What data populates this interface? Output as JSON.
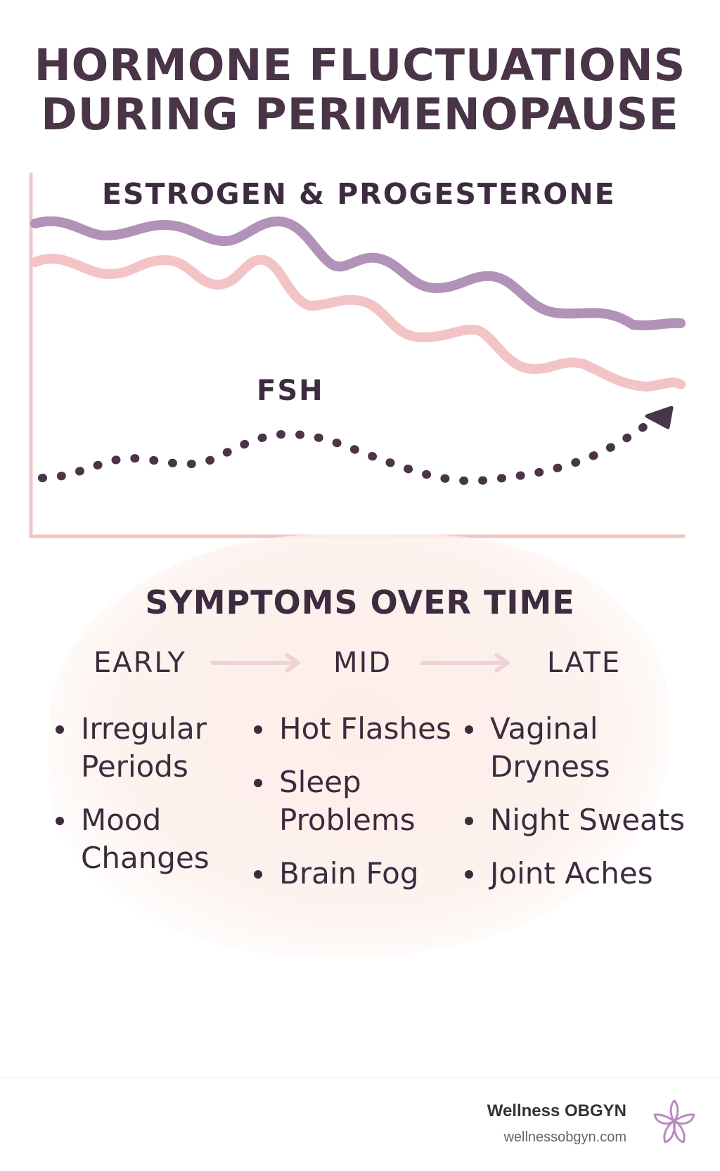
{
  "title": {
    "line1": "HORMONE FLUCTUATIONS",
    "line2": "DURING PERIMENOPAUSE"
  },
  "chart": {
    "estrogen_label": "ESTROGEN & PROGESTERONE",
    "fsh_label": "FSH",
    "colors": {
      "estrogen": "#b192b8",
      "progesterone": "#f3c4c6",
      "fsh": "#4a3448",
      "axis": "#f3c4c6"
    }
  },
  "symptoms": {
    "title": "SYMPTOMS OVER TIME",
    "stages": [
      {
        "label": "EARLY",
        "items": [
          "Irregular Periods",
          "Mood Changes"
        ]
      },
      {
        "label": "MID",
        "items": [
          "Hot Flashes",
          "Sleep Problems",
          "Brain Fog"
        ]
      },
      {
        "label": "LATE",
        "items": [
          "Vaginal Dryness",
          "Night Sweats",
          "Joint Aches"
        ]
      }
    ]
  },
  "footer": {
    "brand_name": "Wellness OBGYN",
    "url": "wellnessobgyn.com",
    "logo_icon": "flower-icon"
  }
}
